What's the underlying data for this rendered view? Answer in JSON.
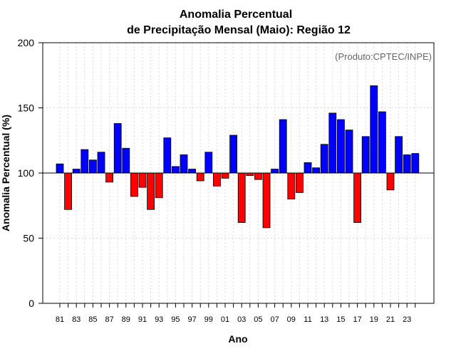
{
  "chart_data": {
    "type": "bar",
    "title": "Anomalia Percentual",
    "subtitle": "de Precipitação Mensal (Maio): Região 12",
    "xlabel": "Ano",
    "ylabel": "Anomalia Percentual (%)",
    "annotation": "(Produto:CPTEC/INPE)",
    "baseline": 100,
    "ylim": [
      0,
      200
    ],
    "yticks": [
      0,
      50,
      100,
      150,
      200
    ],
    "xtick_labels": [
      "81",
      "83",
      "85",
      "87",
      "89",
      "91",
      "93",
      "95",
      "97",
      "99",
      "01",
      "03",
      "05",
      "07",
      "09",
      "11",
      "13",
      "15",
      "17",
      "19",
      "21",
      "23"
    ],
    "categories": [
      "1981",
      "1982",
      "1983",
      "1984",
      "1985",
      "1986",
      "1987",
      "1988",
      "1989",
      "1990",
      "1991",
      "1992",
      "1993",
      "1994",
      "1995",
      "1996",
      "1997",
      "1998",
      "1999",
      "2000",
      "2001",
      "2002",
      "2003",
      "2004",
      "2005",
      "2006",
      "2007",
      "2008",
      "2009",
      "2010",
      "2011",
      "2012",
      "2013",
      "2014",
      "2015",
      "2016",
      "2017",
      "2018",
      "2019",
      "2020",
      "2021",
      "2022",
      "2023",
      "2024"
    ],
    "values": [
      107,
      72,
      103,
      118,
      110,
      116,
      93,
      138,
      119,
      82,
      89,
      72,
      81,
      127,
      105,
      114,
      103,
      94,
      116,
      90,
      96,
      129,
      62,
      98,
      95,
      58,
      103,
      141,
      80,
      85,
      108,
      104,
      122,
      146,
      141,
      133,
      62,
      128,
      167,
      147,
      87,
      128,
      114,
      115
    ],
    "colors": {
      "above": "#0000ff",
      "below": "#ff0000",
      "edge": "#000000",
      "grid": "#d9d9d9"
    }
  }
}
